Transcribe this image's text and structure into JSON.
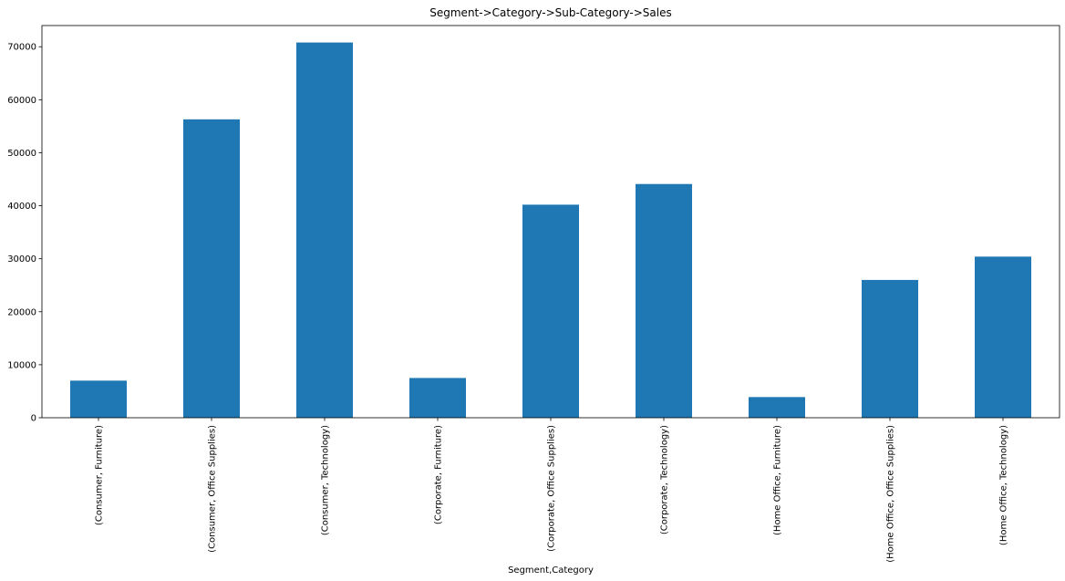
{
  "chart_data": {
    "type": "bar",
    "title": "Segment->Category->Sub-Category->Sales",
    "xlabel": "Segment,Category",
    "ylabel": "",
    "categories": [
      "(Consumer, Furniture)",
      "(Consumer, Office Supplies)",
      "(Consumer, Technology)",
      "(Corporate, Furniture)",
      "(Corporate, Office Supplies)",
      "(Corporate, Technology)",
      "(Home Office, Furniture)",
      "(Home Office, Office Supplies)",
      "(Home Office, Technology)"
    ],
    "values": [
      7000,
      56300,
      70800,
      7500,
      40200,
      44100,
      3900,
      26000,
      30400
    ],
    "ylim": [
      0,
      74000
    ],
    "yticks": [
      0,
      10000,
      20000,
      30000,
      40000,
      50000,
      60000,
      70000
    ],
    "bar_color": "#1f77b4",
    "grid": false,
    "legend": "none"
  }
}
